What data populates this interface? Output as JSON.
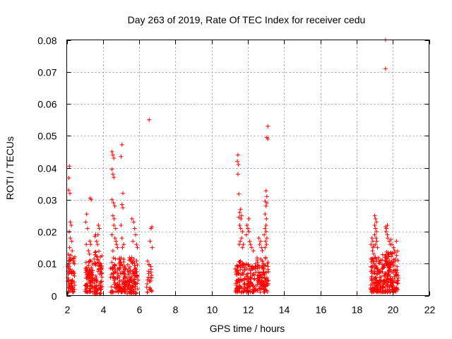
{
  "chart_data": {
    "type": "scatter",
    "title": "Day 263 of 2019, Rate Of TEC Index for receiver cedu",
    "xlabel": "GPS time / hours",
    "ylabel": "ROTI / TECUs",
    "xlim": [
      2,
      22
    ],
    "ylim": [
      0,
      0.08
    ],
    "xticks": [
      "2",
      "4",
      "6",
      "8",
      "10",
      "12",
      "14",
      "16",
      "18",
      "20",
      "22"
    ],
    "yticks": [
      "0",
      "0.01",
      "0.02",
      "0.03",
      "0.04",
      "0.05",
      "0.06",
      "0.07",
      "0.08"
    ],
    "grid": true,
    "marker": "+",
    "color": "#ff0000",
    "clusters": [
      {
        "x_range": [
          2.05,
          2.45
        ],
        "y_range": [
          0.001,
          0.013
        ],
        "count": 70
      },
      {
        "x_range": [
          3.0,
          3.45
        ],
        "y_range": [
          0.001,
          0.011
        ],
        "count": 80
      },
      {
        "x_range": [
          3.5,
          3.95
        ],
        "y_range": [
          0.0005,
          0.014
        ],
        "count": 80
      },
      {
        "x_range": [
          4.4,
          5.25
        ],
        "y_range": [
          0.001,
          0.012
        ],
        "count": 130
      },
      {
        "x_range": [
          5.3,
          5.95
        ],
        "y_range": [
          0.0005,
          0.012
        ],
        "count": 100
      },
      {
        "x_range": [
          6.4,
          6.7
        ],
        "y_range": [
          0.001,
          0.011
        ],
        "count": 25
      },
      {
        "x_range": [
          11.3,
          11.85
        ],
        "y_range": [
          0.001,
          0.011
        ],
        "count": 80
      },
      {
        "x_range": [
          11.9,
          12.45
        ],
        "y_range": [
          0.001,
          0.01
        ],
        "count": 80
      },
      {
        "x_range": [
          12.5,
          13.15
        ],
        "y_range": [
          0.001,
          0.012
        ],
        "count": 100
      },
      {
        "x_range": [
          18.75,
          19.35
        ],
        "y_range": [
          0.001,
          0.012
        ],
        "count": 110
      },
      {
        "x_range": [
          19.4,
          20.3
        ],
        "y_range": [
          0.001,
          0.014
        ],
        "count": 170
      }
    ],
    "points": [
      [
        2.15,
        0.0405
      ],
      [
        2.12,
        0.0368
      ],
      [
        2.18,
        0.032
      ],
      [
        2.1,
        0.033
      ],
      [
        2.2,
        0.023
      ],
      [
        2.25,
        0.022
      ],
      [
        2.14,
        0.02
      ],
      [
        2.2,
        0.018
      ],
      [
        2.28,
        0.017
      ],
      [
        2.16,
        0.015
      ],
      [
        2.3,
        0.014
      ],
      [
        3.1,
        0.0255
      ],
      [
        3.05,
        0.023
      ],
      [
        3.15,
        0.021
      ],
      [
        3.08,
        0.016
      ],
      [
        3.2,
        0.014
      ],
      [
        3.25,
        0.013
      ],
      [
        3.3,
        0.0305
      ],
      [
        3.35,
        0.03
      ],
      [
        3.28,
        0.017
      ],
      [
        3.32,
        0.016
      ],
      [
        3.55,
        0.0185
      ],
      [
        3.6,
        0.019
      ],
      [
        3.65,
        0.017
      ],
      [
        3.7,
        0.016
      ],
      [
        3.75,
        0.022
      ],
      [
        3.8,
        0.021
      ],
      [
        3.72,
        0.019
      ],
      [
        4.5,
        0.045
      ],
      [
        4.55,
        0.044
      ],
      [
        4.6,
        0.043
      ],
      [
        4.5,
        0.0395
      ],
      [
        4.55,
        0.038
      ],
      [
        4.6,
        0.037
      ],
      [
        4.5,
        0.03
      ],
      [
        4.58,
        0.029
      ],
      [
        4.65,
        0.028
      ],
      [
        4.55,
        0.025
      ],
      [
        4.62,
        0.024
      ],
      [
        4.6,
        0.022
      ],
      [
        4.7,
        0.021
      ],
      [
        4.5,
        0.019
      ],
      [
        4.66,
        0.018
      ],
      [
        4.72,
        0.017
      ],
      [
        4.75,
        0.016
      ],
      [
        4.8,
        0.015
      ],
      [
        4.55,
        0.014
      ],
      [
        5.05,
        0.0472
      ],
      [
        5.0,
        0.0435
      ],
      [
        5.1,
        0.032
      ],
      [
        5.05,
        0.0285
      ],
      [
        5.1,
        0.0275
      ],
      [
        5.0,
        0.022
      ],
      [
        5.05,
        0.018
      ],
      [
        5.15,
        0.016
      ],
      [
        5.08,
        0.015
      ],
      [
        5.6,
        0.024
      ],
      [
        5.7,
        0.023
      ],
      [
        5.75,
        0.021
      ],
      [
        5.8,
        0.019
      ],
      [
        5.65,
        0.017
      ],
      [
        5.85,
        0.016
      ],
      [
        5.9,
        0.015
      ],
      [
        6.55,
        0.055
      ],
      [
        6.7,
        0.0215
      ],
      [
        6.65,
        0.021
      ],
      [
        6.6,
        0.017
      ],
      [
        6.72,
        0.015
      ],
      [
        11.45,
        0.044
      ],
      [
        11.42,
        0.042
      ],
      [
        11.48,
        0.041
      ],
      [
        11.45,
        0.038
      ],
      [
        11.5,
        0.0318
      ],
      [
        11.6,
        0.027
      ],
      [
        11.55,
        0.026
      ],
      [
        11.65,
        0.025
      ],
      [
        11.62,
        0.024
      ],
      [
        11.5,
        0.0245
      ],
      [
        11.55,
        0.022
      ],
      [
        11.6,
        0.021
      ],
      [
        11.7,
        0.02
      ],
      [
        11.65,
        0.018
      ],
      [
        11.58,
        0.017
      ],
      [
        11.52,
        0.016
      ],
      [
        11.75,
        0.016
      ],
      [
        11.7,
        0.015
      ],
      [
        11.95,
        0.022
      ],
      [
        12.0,
        0.021
      ],
      [
        12.05,
        0.02
      ],
      [
        11.92,
        0.019
      ],
      [
        12.1,
        0.017
      ],
      [
        12.15,
        0.016
      ],
      [
        12.2,
        0.015
      ],
      [
        12.3,
        0.014
      ],
      [
        12.05,
        0.024
      ],
      [
        12.6,
        0.018
      ],
      [
        12.7,
        0.017
      ],
      [
        12.65,
        0.016
      ],
      [
        12.75,
        0.015
      ],
      [
        12.8,
        0.014
      ],
      [
        13.1,
        0.053
      ],
      [
        13.05,
        0.0495
      ],
      [
        13.1,
        0.049
      ],
      [
        13.0,
        0.0328
      ],
      [
        13.05,
        0.031
      ],
      [
        12.95,
        0.0295
      ],
      [
        13.05,
        0.029
      ],
      [
        13.0,
        0.028
      ],
      [
        12.95,
        0.0255
      ],
      [
        13.02,
        0.024
      ],
      [
        13.0,
        0.022
      ],
      [
        12.95,
        0.021
      ],
      [
        13.0,
        0.02
      ],
      [
        12.9,
        0.019
      ],
      [
        13.05,
        0.018
      ],
      [
        12.98,
        0.017
      ],
      [
        13.03,
        0.016
      ],
      [
        12.95,
        0.015
      ],
      [
        18.85,
        0.018
      ],
      [
        18.9,
        0.017
      ],
      [
        18.8,
        0.016
      ],
      [
        18.95,
        0.0155
      ],
      [
        18.9,
        0.015
      ],
      [
        18.88,
        0.014
      ],
      [
        18.95,
        0.013
      ],
      [
        19.0,
        0.025
      ],
      [
        19.05,
        0.024
      ],
      [
        19.1,
        0.023
      ],
      [
        19.0,
        0.022
      ],
      [
        19.05,
        0.021
      ],
      [
        19.1,
        0.02
      ],
      [
        19.0,
        0.019
      ],
      [
        19.08,
        0.018
      ],
      [
        19.12,
        0.017
      ],
      [
        19.05,
        0.016
      ],
      [
        19.15,
        0.015
      ],
      [
        19.6,
        0.08
      ],
      [
        19.6,
        0.071
      ],
      [
        19.6,
        0.0215
      ],
      [
        19.65,
        0.021
      ],
      [
        19.7,
        0.022
      ],
      [
        19.62,
        0.02
      ],
      [
        19.7,
        0.019
      ],
      [
        19.72,
        0.018
      ],
      [
        19.8,
        0.017
      ],
      [
        19.85,
        0.016
      ],
      [
        19.9,
        0.0175
      ],
      [
        19.95,
        0.016
      ],
      [
        20.05,
        0.015
      ],
      [
        20.2,
        0.017
      ],
      [
        20.1,
        0.014
      ]
    ]
  }
}
